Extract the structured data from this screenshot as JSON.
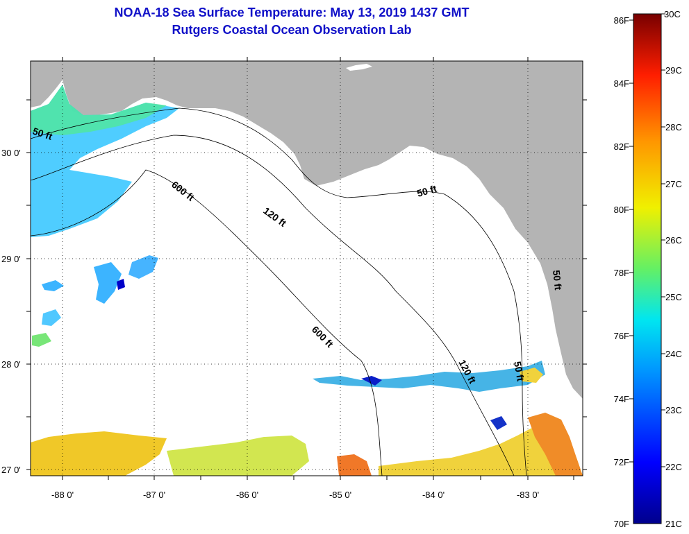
{
  "title": {
    "line1": "NOAA-18 Sea Surface Temperature:  May 13, 2019 1437 GMT",
    "line2": "Rutgers Coastal Ocean Observation Lab"
  },
  "map": {
    "latitude_labels": [
      "30 0'",
      "29 0'",
      "28 0'",
      "27 0'"
    ],
    "longitude_labels": [
      "-88 0'",
      "-87 0'",
      "-86 0'",
      "-85 0'",
      "-84 0'",
      "-83 0'"
    ],
    "depth_labels": [
      {
        "id": "50-ft-west",
        "text": "50 ft"
      },
      {
        "id": "600-ft-north",
        "text": "600 ft"
      },
      {
        "id": "120-ft-north",
        "text": "120 ft"
      },
      {
        "id": "50-ft-east",
        "text": "50 ft"
      },
      {
        "id": "600-ft-south",
        "text": "600 ft"
      },
      {
        "id": "120-ft-south",
        "text": "120 ft"
      },
      {
        "id": "50-ft-south",
        "text": "50 ft"
      },
      {
        "id": "50-ft-coast",
        "text": "50 ft"
      }
    ],
    "land_color": "#b4b4b4",
    "grid": "dotted"
  },
  "colorbar": {
    "fahrenheit_labels": [
      "86F",
      "84F",
      "82F",
      "80F",
      "78F",
      "76F",
      "74F",
      "72F",
      "70F"
    ],
    "celsius_labels": [
      "30C",
      "29C",
      "28C",
      "27C",
      "26C",
      "25C",
      "24C",
      "23C",
      "22C",
      "21C"
    ],
    "range_c": [
      21,
      30
    ],
    "range_f": [
      70,
      86
    ]
  }
}
